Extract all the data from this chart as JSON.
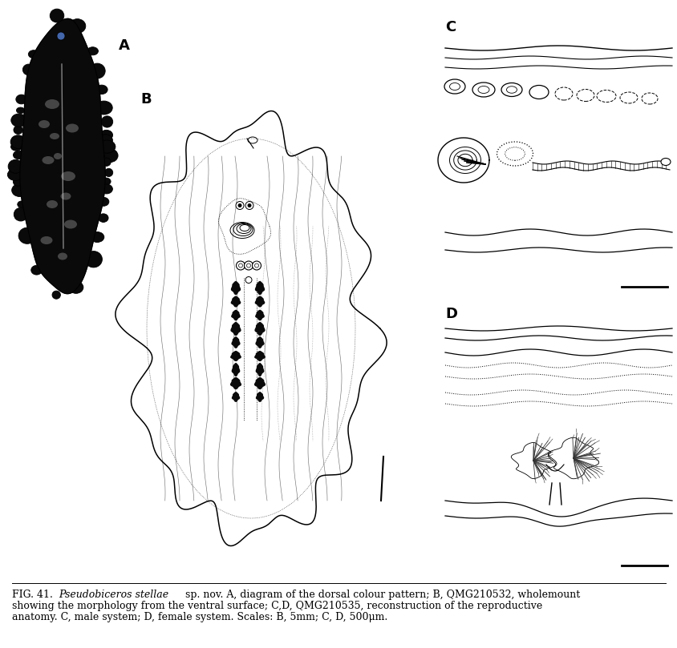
{
  "figure_width": 8.44,
  "figure_height": 8.09,
  "bg_color": "#ffffff",
  "label_A": "A",
  "label_B": "B",
  "label_C": "C",
  "label_D": "D",
  "caption_fontsize": 9.0,
  "label_fontsize": 13,
  "label_fontweight": "bold"
}
